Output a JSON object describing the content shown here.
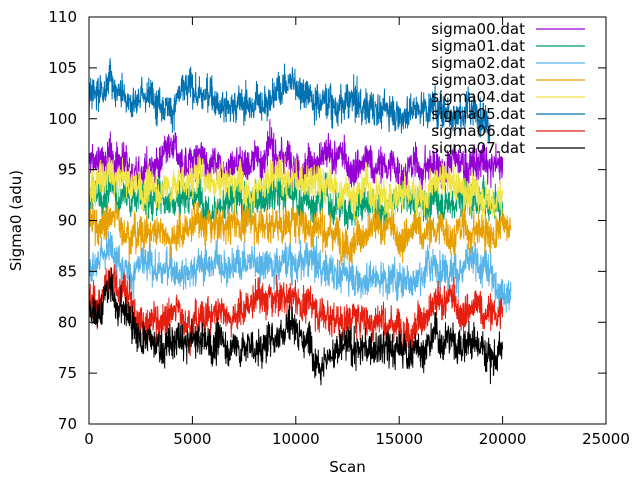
{
  "chart_data": {
    "type": "line",
    "title": "",
    "xlabel": "Scan",
    "ylabel": "Sigma0 (adu)",
    "xlim": [
      0,
      25000
    ],
    "ylim": [
      70,
      110
    ],
    "xticks": [
      0,
      5000,
      10000,
      15000,
      20000,
      25000
    ],
    "yticks": [
      70,
      75,
      80,
      85,
      90,
      95,
      100,
      105,
      110
    ],
    "grid": false,
    "legend_position": "top-right",
    "series": [
      {
        "name": "sigma00.dat",
        "color": "#9400d3",
        "x_end": 20000,
        "level": [
          [
            0,
            95.5
          ],
          [
            1000,
            96
          ],
          [
            3000,
            95.5
          ],
          [
            6000,
            96
          ],
          [
            9500,
            96.5
          ],
          [
            12000,
            95.5
          ],
          [
            15000,
            95
          ],
          [
            17500,
            95.5
          ],
          [
            20000,
            95
          ]
        ]
      },
      {
        "name": "sigma01.dat",
        "color": "#009e73",
        "x_end": 20000,
        "level": [
          [
            0,
            92.5
          ],
          [
            1000,
            93
          ],
          [
            3000,
            92
          ],
          [
            5000,
            93
          ],
          [
            7500,
            91.5
          ],
          [
            9500,
            92.5
          ],
          [
            12000,
            91.5
          ],
          [
            15000,
            91.5
          ],
          [
            17500,
            92.5
          ],
          [
            20000,
            92.5
          ]
        ]
      },
      {
        "name": "sigma02.dat",
        "color": "#56b4e9",
        "x_end": 20400,
        "level": [
          [
            0,
            85.5
          ],
          [
            1000,
            87
          ],
          [
            3000,
            85
          ],
          [
            6000,
            86
          ],
          [
            9500,
            86.5
          ],
          [
            12000,
            85
          ],
          [
            15000,
            84.5
          ],
          [
            17500,
            86
          ],
          [
            20400,
            83.5
          ]
        ]
      },
      {
        "name": "sigma03.dat",
        "color": "#e69f00",
        "x_end": 20400,
        "level": [
          [
            0,
            89.5
          ],
          [
            1000,
            90
          ],
          [
            3000,
            89
          ],
          [
            6000,
            89.5
          ],
          [
            9500,
            90
          ],
          [
            12000,
            89
          ],
          [
            15000,
            88.5
          ],
          [
            17500,
            89
          ],
          [
            20400,
            89
          ]
        ]
      },
      {
        "name": "sigma04.dat",
        "color": "#f0e442",
        "x_end": 20000,
        "level": [
          [
            0,
            93.5
          ],
          [
            1000,
            94
          ],
          [
            3000,
            93
          ],
          [
            5500,
            94.5
          ],
          [
            9500,
            94
          ],
          [
            12000,
            93
          ],
          [
            15000,
            92.5
          ],
          [
            17500,
            93.5
          ],
          [
            20000,
            92.5
          ]
        ]
      },
      {
        "name": "sigma05.dat",
        "color": "#0072b2",
        "x_end": 19400,
        "level": [
          [
            0,
            102
          ],
          [
            1000,
            104
          ],
          [
            3000,
            102
          ],
          [
            5000,
            102.5
          ],
          [
            8000,
            101.5
          ],
          [
            9700,
            104
          ],
          [
            12000,
            101.5
          ],
          [
            15000,
            101
          ],
          [
            16500,
            101.5
          ],
          [
            19400,
            100.5
          ]
        ]
      },
      {
        "name": "sigma06.dat",
        "color": "#e51e10",
        "x_end": 20000,
        "level": [
          [
            0,
            81.5
          ],
          [
            1000,
            83
          ],
          [
            3000,
            80.5
          ],
          [
            6000,
            81
          ],
          [
            9500,
            82.5
          ],
          [
            12000,
            80.5
          ],
          [
            15000,
            80
          ],
          [
            17500,
            81.5
          ],
          [
            20000,
            80.5
          ]
        ]
      },
      {
        "name": "sigma07.dat",
        "color": "#000000",
        "x_end": 20000,
        "level": [
          [
            0,
            81
          ],
          [
            1000,
            83
          ],
          [
            3000,
            77.5
          ],
          [
            6000,
            78
          ],
          [
            8500,
            77.5
          ],
          [
            9700,
            80.5
          ],
          [
            11000,
            77.5
          ],
          [
            15000,
            77
          ],
          [
            17500,
            78.5
          ],
          [
            20000,
            77
          ]
        ]
      }
    ]
  }
}
